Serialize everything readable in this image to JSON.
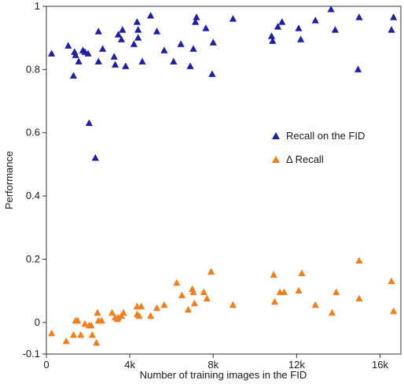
{
  "chart_data": {
    "type": "scatter",
    "title": "",
    "xlabel": "Number of training images in the FID",
    "ylabel": "Performance",
    "xlim": [
      0,
      17000
    ],
    "ylim": [
      -0.1,
      1.0
    ],
    "x_ticks": [
      {
        "value": 0,
        "label": "0"
      },
      {
        "value": 4000,
        "label": "4k"
      },
      {
        "value": 8000,
        "label": "8k"
      },
      {
        "value": 12000,
        "label": "12k"
      },
      {
        "value": 16000,
        "label": "16k"
      }
    ],
    "y_ticks": [
      {
        "value": -0.1,
        "label": "-0.1"
      },
      {
        "value": 0,
        "label": "0"
      },
      {
        "value": 0.2,
        "label": "0.2"
      },
      {
        "value": 0.4,
        "label": "0.4"
      },
      {
        "value": 0.6,
        "label": "0.6"
      },
      {
        "value": 0.8,
        "label": "0.8"
      },
      {
        "value": 1.0,
        "label": "1"
      }
    ],
    "grid": false,
    "legend_position": "right-middle",
    "series": [
      {
        "name": "Recall on the FID",
        "color": "#1f1fa0",
        "marker": "triangle",
        "points": [
          [
            250,
            0.85
          ],
          [
            1050,
            0.875
          ],
          [
            1300,
            0.78
          ],
          [
            1350,
            0.855
          ],
          [
            1400,
            0.845
          ],
          [
            1550,
            0.825
          ],
          [
            1750,
            0.86
          ],
          [
            1850,
            0.855
          ],
          [
            2000,
            0.85
          ],
          [
            2050,
            0.63
          ],
          [
            2350,
            0.52
          ],
          [
            2500,
            0.825
          ],
          [
            2500,
            0.92
          ],
          [
            2700,
            0.865
          ],
          [
            3250,
            0.84
          ],
          [
            3300,
            0.815
          ],
          [
            3450,
            0.91
          ],
          [
            3600,
            0.895
          ],
          [
            3650,
            0.925
          ],
          [
            3800,
            0.81
          ],
          [
            4200,
            0.88
          ],
          [
            4350,
            0.95
          ],
          [
            4400,
            0.925
          ],
          [
            4400,
            0.9
          ],
          [
            4600,
            0.825
          ],
          [
            5000,
            0.97
          ],
          [
            5300,
            0.92
          ],
          [
            5650,
            0.86
          ],
          [
            6100,
            0.825
          ],
          [
            6450,
            0.88
          ],
          [
            6900,
            0.81
          ],
          [
            7050,
            0.865
          ],
          [
            7150,
            0.95
          ],
          [
            7200,
            0.965
          ],
          [
            7650,
            0.93
          ],
          [
            7950,
            0.785
          ],
          [
            8000,
            0.885
          ],
          [
            8950,
            0.96
          ],
          [
            10800,
            0.905
          ],
          [
            10850,
            0.89
          ],
          [
            11100,
            0.935
          ],
          [
            11300,
            0.95
          ],
          [
            12100,
            0.93
          ],
          [
            12200,
            0.895
          ],
          [
            12900,
            0.955
          ],
          [
            13650,
            0.99
          ],
          [
            13850,
            0.925
          ],
          [
            14950,
            0.8
          ],
          [
            15000,
            0.965
          ],
          [
            16550,
            0.925
          ],
          [
            16650,
            0.965
          ]
        ]
      },
      {
        "name": "Δ Recall",
        "color": "#f07f1e",
        "marker": "triangle",
        "points": [
          [
            250,
            -0.035
          ],
          [
            950,
            -0.06
          ],
          [
            1300,
            -0.04
          ],
          [
            1400,
            0.005
          ],
          [
            1500,
            0.005
          ],
          [
            1650,
            -0.04
          ],
          [
            1850,
            -0.005
          ],
          [
            2050,
            -0.01
          ],
          [
            2150,
            -0.01
          ],
          [
            2200,
            -0.04
          ],
          [
            2400,
            -0.065
          ],
          [
            2450,
            0.03
          ],
          [
            2500,
            0.005
          ],
          [
            2650,
            0.005
          ],
          [
            3150,
            0.03
          ],
          [
            3300,
            0.015
          ],
          [
            3400,
            0.01
          ],
          [
            3450,
            0.015
          ],
          [
            3600,
            0.02
          ],
          [
            3700,
            0.03
          ],
          [
            4350,
            0.05
          ],
          [
            4350,
            0.025
          ],
          [
            4450,
            0.02
          ],
          [
            4550,
            0.05
          ],
          [
            5000,
            0.02
          ],
          [
            5300,
            0.045
          ],
          [
            5650,
            0.055
          ],
          [
            6250,
            0.125
          ],
          [
            6500,
            0.085
          ],
          [
            6800,
            0.04
          ],
          [
            7000,
            0.105
          ],
          [
            7050,
            0.095
          ],
          [
            7100,
            0.06
          ],
          [
            7550,
            0.095
          ],
          [
            7700,
            0.075
          ],
          [
            7900,
            0.16
          ],
          [
            8950,
            0.055
          ],
          [
            10900,
            0.15
          ],
          [
            10950,
            0.065
          ],
          [
            11200,
            0.095
          ],
          [
            11400,
            0.095
          ],
          [
            12100,
            0.1
          ],
          [
            12250,
            0.155
          ],
          [
            12900,
            0.055
          ],
          [
            13700,
            0.03
          ],
          [
            13900,
            0.095
          ],
          [
            15000,
            0.195
          ],
          [
            15000,
            0.075
          ],
          [
            16550,
            0.13
          ],
          [
            16650,
            0.035
          ]
        ]
      }
    ]
  }
}
